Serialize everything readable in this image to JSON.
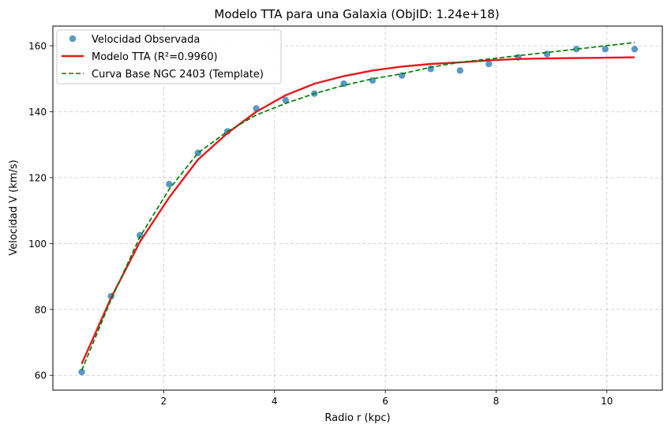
{
  "chart_data": {
    "type": "line",
    "title": "Modelo TTA para una Galaxia (ObjID: 1.24e+18)",
    "xlabel": "Radio r (kpc)",
    "ylabel": "Velocidad V (km/s)",
    "xlim": [
      0.0,
      11.0
    ],
    "ylim": [
      55.5,
      166.0
    ],
    "xticks": [
      2,
      4,
      6,
      8,
      10
    ],
    "yticks": [
      60,
      80,
      100,
      120,
      140,
      160
    ],
    "grid": true,
    "legend_position": "top-left",
    "series": [
      {
        "name": "Velocidad Observada",
        "kind": "markers",
        "color": "#1f77b4",
        "x": [
          0.52,
          1.05,
          1.57,
          2.1,
          2.62,
          3.15,
          3.67,
          4.2,
          4.72,
          5.25,
          5.77,
          6.3,
          6.82,
          7.35,
          7.87,
          8.4,
          8.92,
          9.45,
          9.97,
          10.5
        ],
        "y": [
          61.0,
          84.0,
          102.5,
          118.0,
          127.5,
          134.0,
          141.0,
          143.5,
          145.5,
          148.5,
          149.5,
          151.0,
          153.0,
          152.5,
          154.5,
          156.5,
          157.5,
          159.0,
          159.0,
          159.0
        ]
      },
      {
        "name": "Modelo TTA (R²=0.9960)",
        "kind": "line",
        "color": "#e41a1c",
        "x": [
          0.52,
          1.05,
          1.57,
          2.1,
          2.62,
          3.15,
          3.67,
          4.2,
          4.72,
          5.25,
          5.77,
          6.3,
          6.82,
          7.35,
          7.87,
          8.4,
          8.92,
          9.45,
          9.97,
          10.5
        ],
        "y": [
          63.5,
          83.5,
          100.5,
          114.0,
          125.5,
          133.5,
          140.0,
          145.0,
          148.5,
          150.8,
          152.5,
          153.7,
          154.5,
          155.0,
          155.6,
          156.0,
          156.2,
          156.3,
          156.4,
          156.5
        ]
      },
      {
        "name": "Curva Base NGC 2403 (Template)",
        "kind": "dashed",
        "color": "#008000",
        "x": [
          0.52,
          1.05,
          1.57,
          2.1,
          2.62,
          3.15,
          3.67,
          4.2,
          4.72,
          5.25,
          5.77,
          6.3,
          6.82,
          7.35,
          7.87,
          8.4,
          8.92,
          9.45,
          9.97,
          10.5
        ],
        "y": [
          61.5,
          83.0,
          102.0,
          116.5,
          127.5,
          134.0,
          139.0,
          142.5,
          145.5,
          148.0,
          150.0,
          151.5,
          153.5,
          155.0,
          156.0,
          157.0,
          158.0,
          159.0,
          160.0,
          161.0
        ]
      }
    ]
  }
}
